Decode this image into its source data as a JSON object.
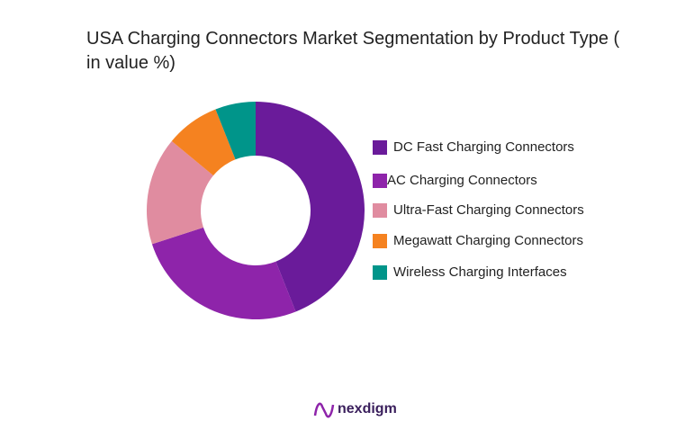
{
  "chart_data": {
    "type": "donut",
    "title": "USA Charging Connectors Market Segmentation by Product Type ( in value %)",
    "categories": [
      "DC Fast Charging Connectors",
      "AC Charging Connectors",
      "Ultra-Fast Charging Connectors",
      "Megawatt Charging Connectors",
      "Wireless Charging Interfaces"
    ],
    "values": [
      44,
      26,
      16,
      8,
      6
    ],
    "colors": [
      "#6a1b9a",
      "#8e24aa",
      "#e08ca0",
      "#f58220",
      "#00958a"
    ],
    "legend": "right"
  },
  "brand": "nexdigm"
}
